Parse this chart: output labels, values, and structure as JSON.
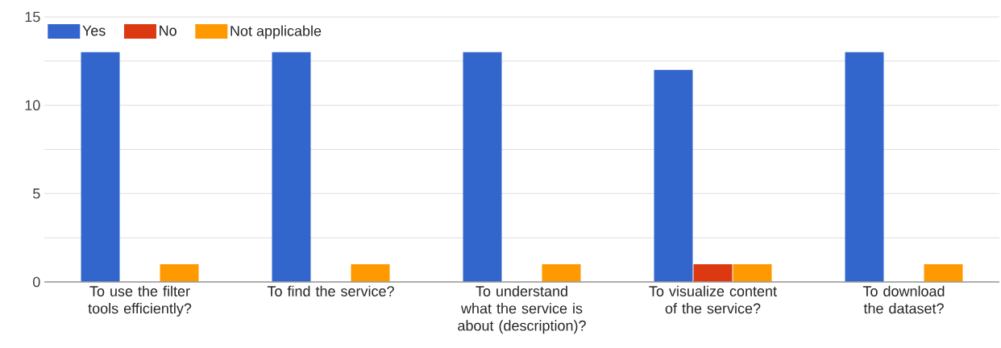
{
  "chart_data": {
    "type": "bar",
    "categories": [
      "To use the filter tools efficiently?",
      "To find the service?",
      "To understand what the service is about (description)?",
      "To visualize content of the service?",
      "To download the dataset?"
    ],
    "series": [
      {
        "name": "Yes",
        "color": "#3366cc",
        "values": [
          13,
          13,
          13,
          12,
          13
        ]
      },
      {
        "name": "No",
        "color": "#dc3912",
        "values": [
          0,
          0,
          0,
          1,
          0
        ]
      },
      {
        "name": "Not applicable",
        "color": "#ff9900",
        "values": [
          1,
          1,
          1,
          1,
          1
        ]
      }
    ],
    "ylim": [
      0,
      15
    ],
    "yticks": [
      0,
      {
        "value": 2.5,
        "label": null
      },
      5,
      {
        "value": 7.5,
        "label": null
      },
      10,
      {
        "value": 12.5,
        "label": null
      },
      15
    ],
    "grid": "y",
    "legend": "top left"
  }
}
